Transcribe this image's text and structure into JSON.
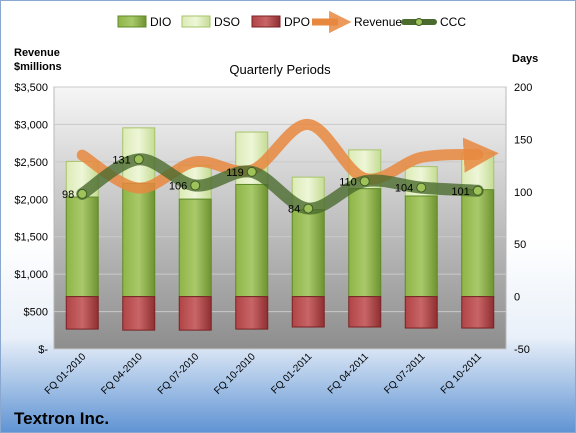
{
  "chart_data": {
    "type": "bar",
    "title": "Quarterly Periods",
    "company": "Textron Inc.",
    "left_axis_label": [
      "Revenue",
      "$millions"
    ],
    "right_axis_label": "Days",
    "categories": [
      "FQ 01-2010",
      "FQ 04-2010",
      "FQ 07-2010",
      "FQ 10-2010",
      "FQ 01-2011",
      "FQ 04-2011",
      "FQ 07-2011",
      "FQ 10-2011"
    ],
    "left_axis": {
      "ylim": [
        0,
        3500
      ],
      "ticks": [
        0,
        500,
        1000,
        1500,
        2000,
        2500,
        3000,
        3500
      ],
      "tick_labels": [
        "$-",
        "$500",
        "$1,000",
        "$1,500",
        "$2,000",
        "$2,500",
        "$3,000",
        "$3,500"
      ]
    },
    "right_axis": {
      "ylim": [
        -50,
        200
      ],
      "ticks": [
        -50,
        0,
        50,
        100,
        150,
        200
      ],
      "tick_labels": [
        "-50",
        "0",
        "50",
        "100",
        "150",
        "200"
      ]
    },
    "series": [
      {
        "name": "DIO",
        "axis": "right",
        "kind": "bar",
        "color": "#7fa53a",
        "values": [
          95,
          108,
          93,
          107,
          83,
          103,
          96,
          102
        ]
      },
      {
        "name": "DSO",
        "axis": "right",
        "kind": "stacked-bar",
        "color": "#d4e7a8",
        "values": [
          34,
          53,
          32,
          50,
          31,
          37,
          28,
          35
        ]
      },
      {
        "name": "DPO",
        "axis": "right",
        "kind": "negative-bar",
        "color": "#b0484a",
        "values": [
          -31,
          -32,
          -32,
          -31,
          -29,
          -29,
          -30,
          -30
        ]
      },
      {
        "name": "Revenue",
        "axis": "left",
        "kind": "line",
        "color": "#e8883f",
        "values": [
          2590,
          2150,
          2500,
          2390,
          3000,
          2280,
          2560,
          2600
        ]
      },
      {
        "name": "CCC",
        "axis": "right",
        "kind": "line",
        "color": "#5a7a3a",
        "values": [
          98,
          131,
          106,
          119,
          84,
          110,
          104,
          101
        ],
        "labels": [
          "98",
          "131",
          "106",
          "119",
          "84",
          "110",
          "104",
          "101"
        ]
      }
    ],
    "legend_position": "top",
    "grid": true
  }
}
